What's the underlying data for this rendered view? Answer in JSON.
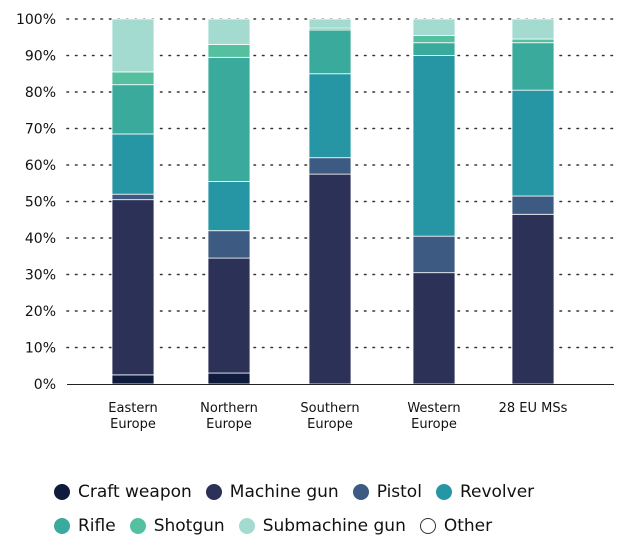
{
  "chart_data": {
    "type": "bar",
    "stacked": true,
    "categories": [
      [
        "Eastern",
        "Europe"
      ],
      [
        "Northern",
        "Europe"
      ],
      [
        "Southern",
        "Europe"
      ],
      [
        "Western",
        "Europe"
      ],
      [
        "28 EU MSs"
      ]
    ],
    "series": [
      {
        "name": "Craft weapon",
        "color": "#0f1b3d",
        "values": [
          2.5,
          3,
          0,
          0,
          0
        ]
      },
      {
        "name": "Machine gun",
        "color": "#2c3157",
        "values": [
          48,
          31.5,
          57.5,
          30.5,
          46.5
        ]
      },
      {
        "name": "Pistol",
        "color": "#3c5a82",
        "values": [
          1.5,
          7.5,
          4.5,
          10,
          5
        ]
      },
      {
        "name": "Revolver",
        "color": "#2696a5",
        "values": [
          16.5,
          13.5,
          23,
          49.5,
          29
        ]
      },
      {
        "name": "Rifle",
        "color": "#3aaa9c",
        "values": [
          13.5,
          34,
          12,
          3.5,
          13
        ]
      },
      {
        "name": "Shotgun",
        "color": "#55c0a0",
        "values": [
          3.5,
          3.5,
          0.5,
          2,
          1
        ]
      },
      {
        "name": "Submachine gun",
        "color": "#a4dbd1",
        "values": [
          14.5,
          7,
          2.5,
          4.5,
          5.5
        ]
      },
      {
        "name": "Other",
        "color": "#ffffff",
        "values": [
          0,
          0,
          0,
          0,
          0
        ]
      }
    ],
    "ylim": [
      0,
      100
    ],
    "yticks": [
      "0%",
      "10%",
      "20%",
      "30%",
      "40%",
      "50%",
      "60%",
      "70%",
      "80%",
      "90%",
      "100%"
    ],
    "grid": "dotted-horizontal",
    "legend": "bottom"
  }
}
